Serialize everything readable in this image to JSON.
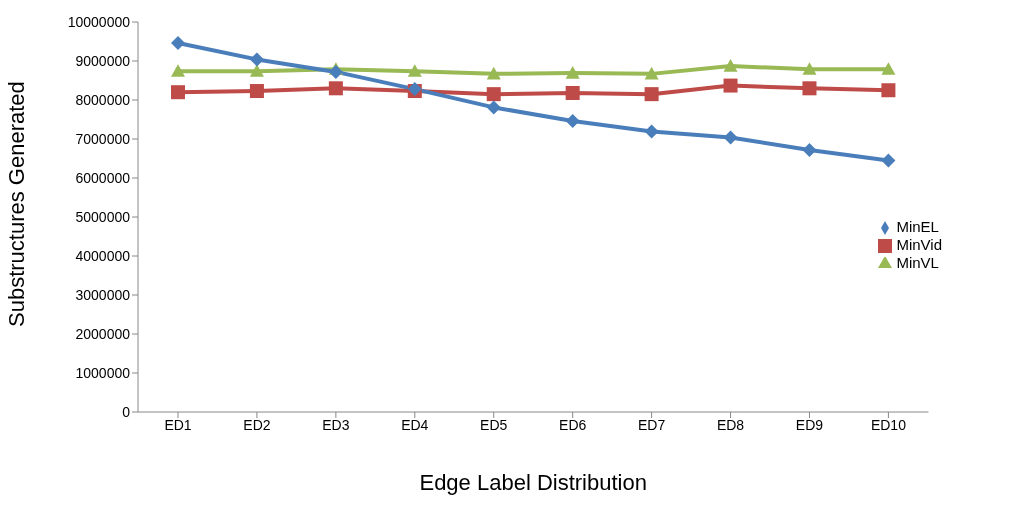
{
  "chart_data": {
    "type": "line",
    "xlabel": "Edge Label Distribution",
    "ylabel": "Substructures Generated",
    "categories": [
      "ED1",
      "ED2",
      "ED3",
      "ED4",
      "ED5",
      "ED6",
      "ED7",
      "ED8",
      "ED9",
      "ED10"
    ],
    "series": [
      {
        "name": "MinEL",
        "color": "#4a7ebb",
        "marker": "diamond",
        "values": [
          9460000,
          9040000,
          8720000,
          8280000,
          7810000,
          7460000,
          7190000,
          7040000,
          6720000,
          6450000
        ]
      },
      {
        "name": "MinVid",
        "color": "#be4b48",
        "marker": "square",
        "values": [
          8200000,
          8230000,
          8300000,
          8230000,
          8150000,
          8180000,
          8150000,
          8370000,
          8300000,
          8250000
        ]
      },
      {
        "name": "MinVL",
        "color": "#98b954",
        "marker": "triangle",
        "values": [
          8740000,
          8740000,
          8790000,
          8740000,
          8670000,
          8690000,
          8670000,
          8870000,
          8790000,
          8790000
        ]
      }
    ],
    "ylim": [
      0,
      10000000
    ],
    "yticks": [
      0,
      1000000,
      2000000,
      3000000,
      4000000,
      5000000,
      6000000,
      7000000,
      8000000,
      9000000,
      10000000
    ],
    "grid": false,
    "legend": "right",
    "line_style": "solid"
  }
}
